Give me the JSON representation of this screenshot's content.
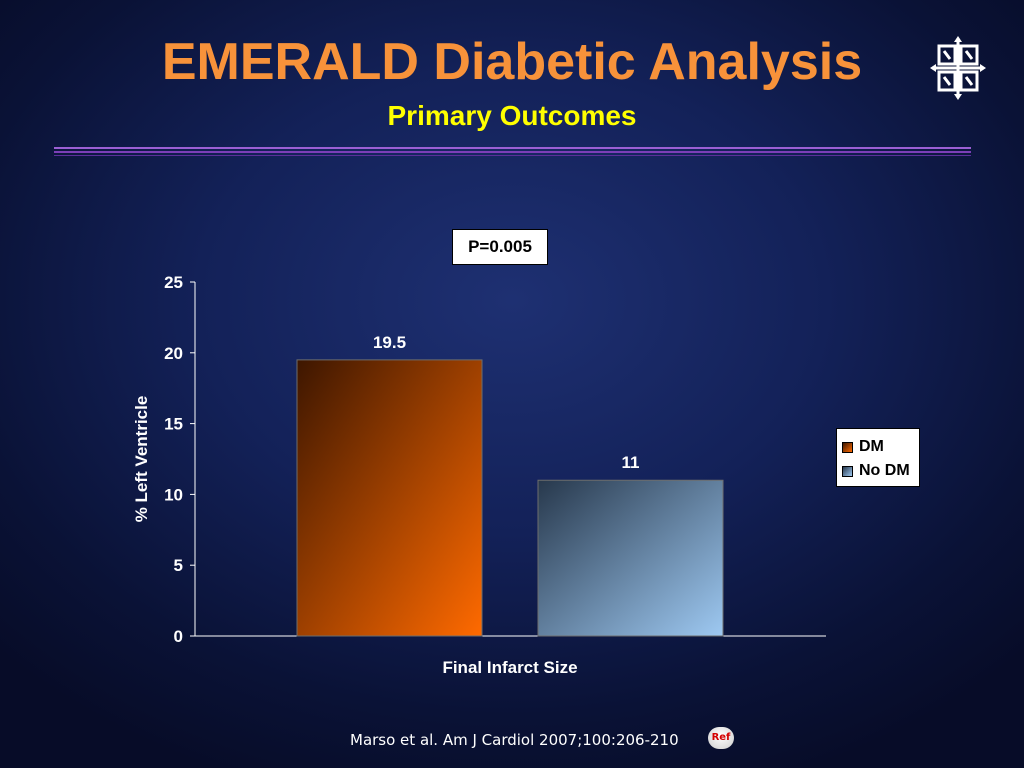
{
  "slide": {
    "title": "EMERALD Diabetic Analysis",
    "subtitle": "Primary Outcomes",
    "citation": "Marso et al. Am J Cardiol 2007;100:206-210",
    "ref_label": "Ref",
    "logo_icon": "celtic-knot-logo-icon"
  },
  "colors": {
    "title": "#f7923a",
    "subtitle": "#ffff00",
    "background": "#0e1a4a",
    "dm_light": "#ff6a00",
    "dm_dark": "#3d1600",
    "nodm_light": "#9ec9f2",
    "nodm_dark": "#27384c"
  },
  "chart_data": {
    "type": "bar",
    "title": "",
    "annotation": "P=0.005",
    "xlabel": "Final Infarct Size",
    "ylabel": "% Left Ventricle",
    "ylim": [
      0,
      25
    ],
    "yticks": [
      0,
      5,
      10,
      15,
      20,
      25
    ],
    "categories": [
      "Final Infarct Size"
    ],
    "series": [
      {
        "name": "DM",
        "values": [
          19.5
        ],
        "data_label": "19.5"
      },
      {
        "name": "No DM",
        "values": [
          11
        ],
        "data_label": "11"
      }
    ],
    "legend_position": "right",
    "grid": false
  }
}
